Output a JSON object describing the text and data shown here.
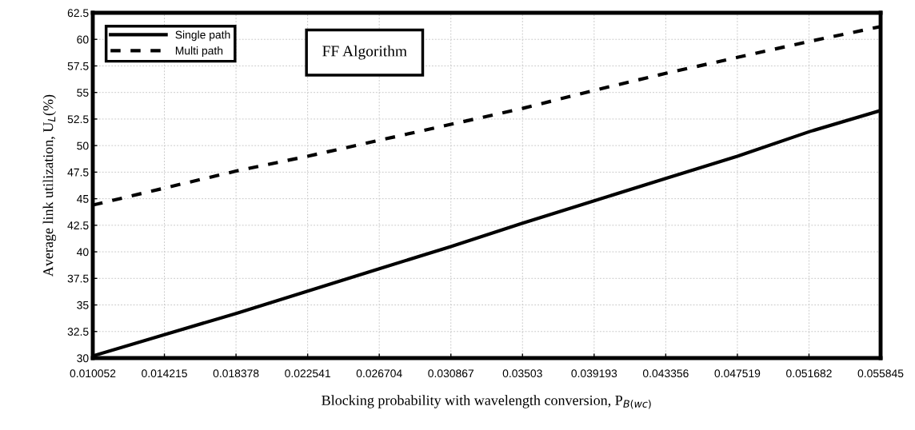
{
  "chart_data": {
    "type": "line",
    "xlabel": "Blocking probability with wavelength conversion, P$_{B(wc)}$",
    "ylabel": "Average link utilization, U$_{L}$(%)",
    "annotations": [
      "FF Algorithm"
    ],
    "x": [
      0.010052,
      0.014215,
      0.018378,
      0.022541,
      0.026704,
      0.030867,
      0.03503,
      0.039193,
      0.043356,
      0.047519,
      0.051682,
      0.055845
    ],
    "series": [
      {
        "name": "Single path",
        "color": "#000000",
        "line_style": "solid",
        "values": [
          30.2,
          32.2,
          34.2,
          36.3,
          38.4,
          40.5,
          42.7,
          44.8,
          46.9,
          49.0,
          51.3,
          53.3
        ]
      },
      {
        "name": "Multi path",
        "color": "#000000",
        "line_style": "dashed",
        "values": [
          44.4,
          46.0,
          47.6,
          49.0,
          50.5,
          52.0,
          53.5,
          55.2,
          56.8,
          58.3,
          59.8,
          61.2
        ]
      }
    ],
    "xlim": [
      0.010052,
      0.055845
    ],
    "xticks": [
      0.010052,
      0.014215,
      0.018378,
      0.022541,
      0.026704,
      0.030867,
      0.03503,
      0.039193,
      0.043356,
      0.047519,
      0.051682,
      0.055845
    ],
    "ylim": [
      30,
      62.5
    ],
    "yticks": [
      30,
      32.5,
      35,
      37.5,
      40,
      42.5,
      45,
      47.5,
      50,
      52.5,
      55,
      57.5,
      60,
      62.5
    ],
    "grid": true,
    "legend": "top left",
    "marker": "none"
  }
}
